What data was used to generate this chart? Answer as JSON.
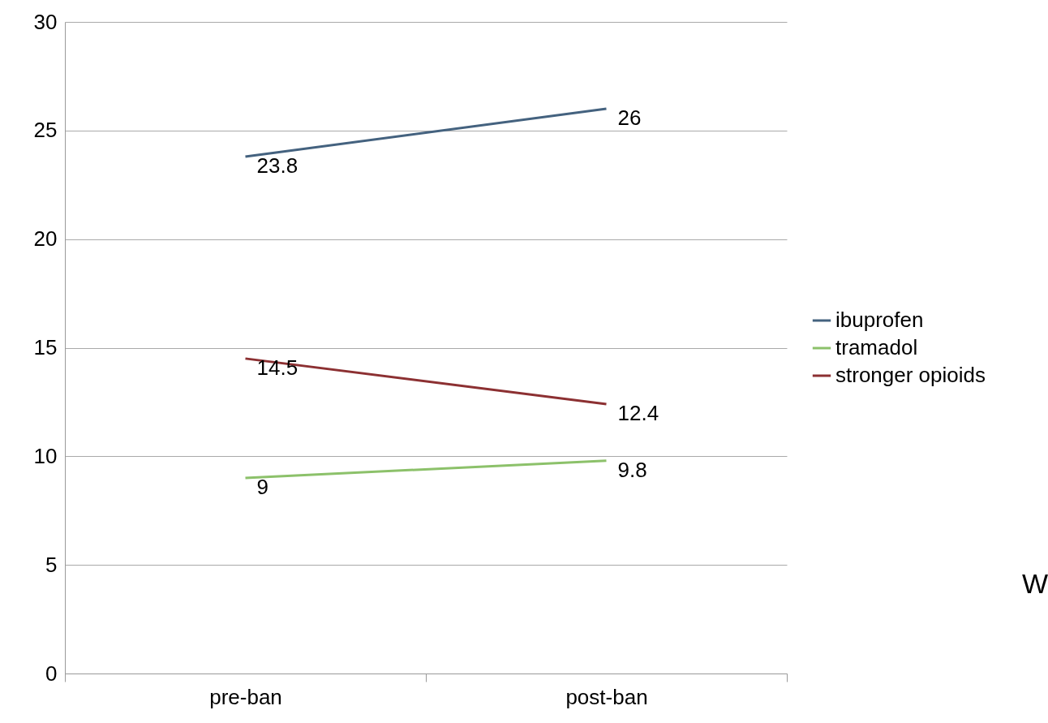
{
  "chart_data": {
    "type": "line",
    "categories": [
      "pre-ban",
      "post-ban"
    ],
    "series": [
      {
        "name": "ibuprofen",
        "color": "#44627f",
        "values": [
          23.8,
          26
        ]
      },
      {
        "name": "tramadol",
        "color": "#8cc16a",
        "values": [
          9,
          9.8
        ]
      },
      {
        "name": "stronger opioids",
        "color": "#8c3032",
        "values": [
          14.5,
          12.4
        ]
      }
    ],
    "ylim": [
      0,
      30
    ],
    "yticks": [
      0,
      5,
      10,
      15,
      20,
      25,
      30
    ],
    "grid": "y",
    "legend": "right",
    "data_labels": true,
    "marker": "none",
    "line_style": "solid",
    "annotations": [
      "W"
    ]
  }
}
